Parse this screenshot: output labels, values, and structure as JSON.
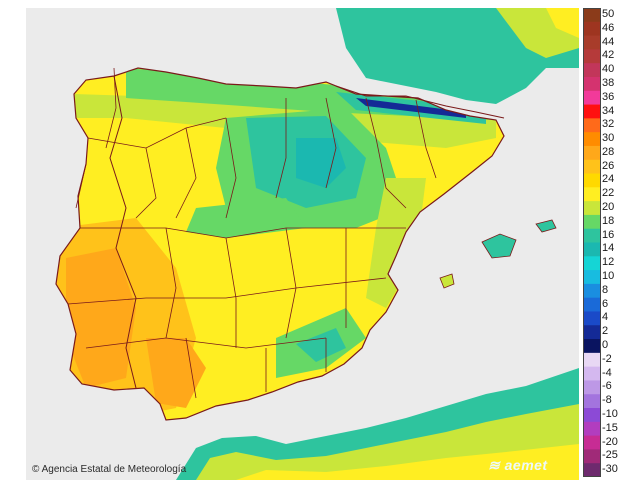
{
  "credit": {
    "text": "Agencia Estatal de Meteorología",
    "copyright_symbol": "©"
  },
  "logo": {
    "text": "aemet",
    "icon": "aemet-swirl-icon"
  },
  "legend": {
    "levels": [
      {
        "label": "50",
        "color": "#8b3b1a"
      },
      {
        "label": "46",
        "color": "#9e3520"
      },
      {
        "label": "44",
        "color": "#a83c2a"
      },
      {
        "label": "42",
        "color": "#b53a3a"
      },
      {
        "label": "40",
        "color": "#c2365a"
      },
      {
        "label": "38",
        "color": "#d4336f"
      },
      {
        "label": "36",
        "color": "#f23a9a"
      },
      {
        "label": "34",
        "color": "#ff1010"
      },
      {
        "label": "32",
        "color": "#ff6a1a"
      },
      {
        "label": "30",
        "color": "#ff8c00"
      },
      {
        "label": "28",
        "color": "#ffa81a"
      },
      {
        "label": "26",
        "color": "#ffc21a"
      },
      {
        "label": "24",
        "color": "#ffd900"
      },
      {
        "label": "22",
        "color": "#ffee22"
      },
      {
        "label": "20",
        "color": "#c9e63a"
      },
      {
        "label": "18",
        "color": "#66d866"
      },
      {
        "label": "16",
        "color": "#2ec49e"
      },
      {
        "label": "14",
        "color": "#1bb8b0"
      },
      {
        "label": "12",
        "color": "#15d5d5"
      },
      {
        "label": "10",
        "color": "#18bce0"
      },
      {
        "label": "8",
        "color": "#1a8ee0"
      },
      {
        "label": "6",
        "color": "#1a6ad8"
      },
      {
        "label": "4",
        "color": "#1a4ac8"
      },
      {
        "label": "2",
        "color": "#142a96"
      },
      {
        "label": "0",
        "color": "#0a1460"
      },
      {
        "label": "-2",
        "color": "#e8d8f4"
      },
      {
        "label": "-4",
        "color": "#d4b8ef"
      },
      {
        "label": "-6",
        "color": "#bd98e6"
      },
      {
        "label": "-8",
        "color": "#a374de"
      },
      {
        "label": "-10",
        "color": "#8c4ad6"
      },
      {
        "label": "-15",
        "color": "#b23dbf"
      },
      {
        "label": "-20",
        "color": "#c72c94"
      },
      {
        "label": "-25",
        "color": "#a02a78"
      },
      {
        "label": "-30",
        "color": "#6e2a6e"
      }
    ]
  },
  "colors": {
    "sea": "#ebebeb",
    "border": "#7a1a1a",
    "warm": "#ffa81a",
    "hot": "#ff8c00",
    "mild": "#ffee22",
    "cool": "#c9e63a",
    "green": "#66d866",
    "teal": "#2ec49e",
    "cyan": "#15d5d5",
    "deep": "#142a96"
  }
}
